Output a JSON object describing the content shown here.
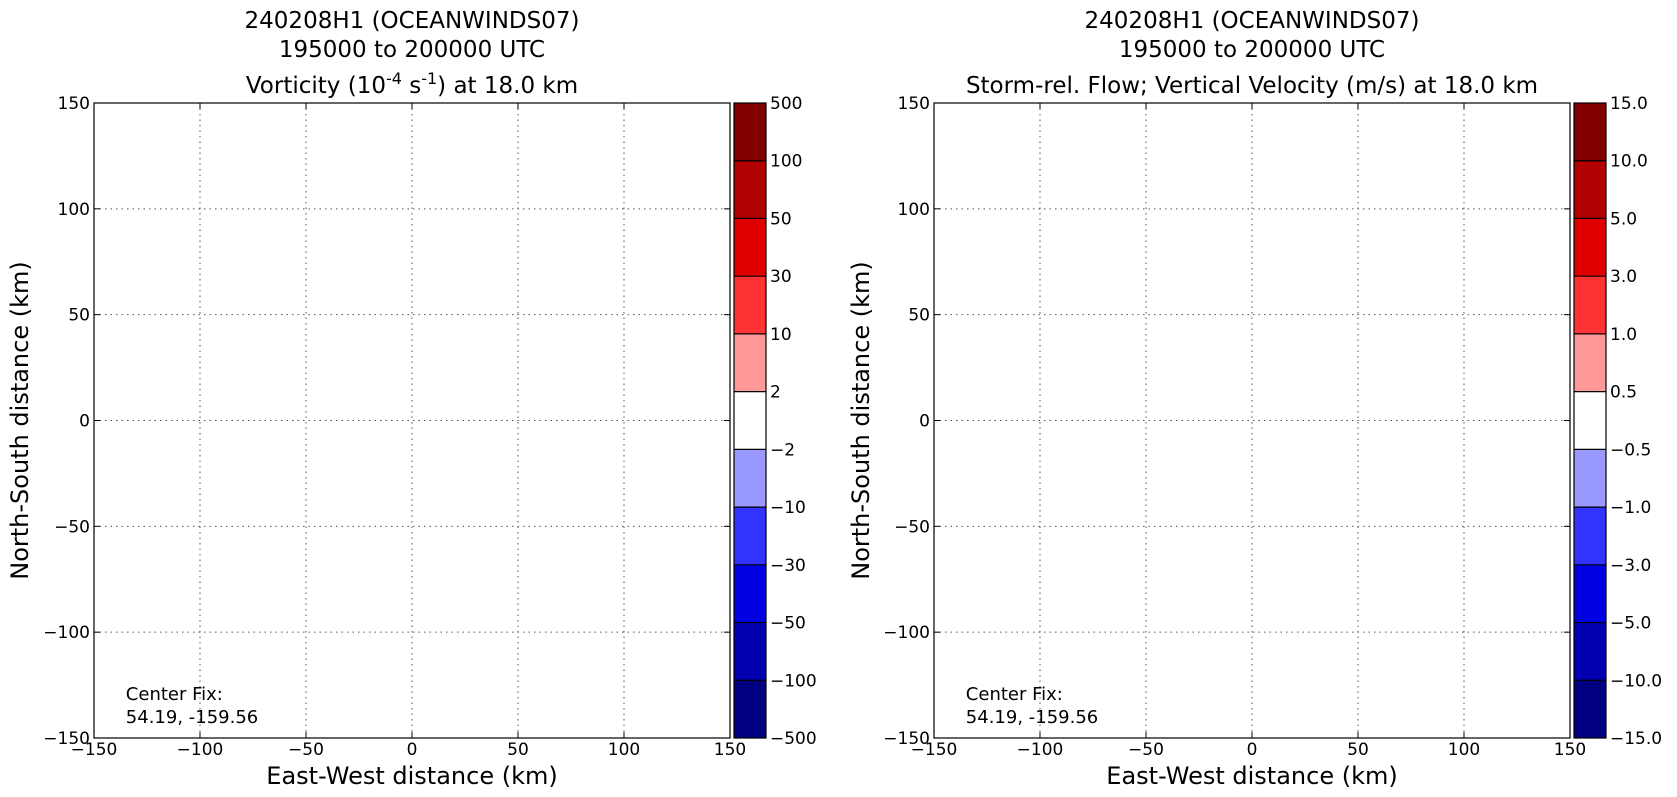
{
  "chart_data": [
    {
      "type": "contour",
      "title_lines": [
        "240208H1 (OCEANWINDS07)",
        "195000 to 200000 UTC"
      ],
      "title_line3": {
        "pre": "Vorticity (10",
        "sup1": "-4",
        "mid": " s",
        "sup2": "-1",
        "post": ") at 18.0 km"
      },
      "xlabel": "East-West distance (km)",
      "ylabel": "North-South distance (km)",
      "xlim": [
        -150,
        150
      ],
      "ylim": [
        -150,
        150
      ],
      "xticks": [
        -150,
        -100,
        -50,
        0,
        50,
        100,
        150
      ],
      "yticks": [
        -150,
        -100,
        -50,
        0,
        50,
        100,
        150
      ],
      "xtick_labels": [
        "−150",
        "−100",
        "−50",
        "0",
        "50",
        "100",
        "150"
      ],
      "ytick_labels": [
        "−150",
        "−100",
        "−50",
        "0",
        "50",
        "100",
        "150"
      ],
      "grid": true,
      "annotation_lines": [
        "Center Fix:",
        "54.19, -159.56"
      ],
      "colorbar": {
        "levels": [
          -500,
          -100,
          -50,
          -30,
          -10,
          -2,
          2,
          10,
          30,
          50,
          100,
          500
        ],
        "labels": [
          "−500",
          "−100",
          "−50",
          "−30",
          "−10",
          "−2",
          "2",
          "10",
          "30",
          "50",
          "100",
          "500"
        ],
        "colors": [
          "#000080",
          "#0000b0",
          "#0000e0",
          "#3333ff",
          "#9999ff",
          "#ffffff",
          "#ff9999",
          "#ff3333",
          "#e00000",
          "#b00000",
          "#800000"
        ]
      },
      "values": []
    },
    {
      "type": "contour",
      "title_lines": [
        "240208H1 (OCEANWINDS07)",
        "195000 to 200000 UTC"
      ],
      "title_line3_text": "Storm-rel. Flow; Vertical Velocity (m/s) at 18.0 km",
      "xlabel": "East-West distance (km)",
      "ylabel": "North-South distance (km)",
      "xlim": [
        -150,
        150
      ],
      "ylim": [
        -150,
        150
      ],
      "xticks": [
        -150,
        -100,
        -50,
        0,
        50,
        100,
        150
      ],
      "yticks": [
        -150,
        -100,
        -50,
        0,
        50,
        100,
        150
      ],
      "xtick_labels": [
        "−150",
        "−100",
        "−50",
        "0",
        "50",
        "100",
        "150"
      ],
      "ytick_labels": [
        "−150",
        "−100",
        "−50",
        "0",
        "50",
        "100",
        "150"
      ],
      "grid": true,
      "annotation_lines": [
        "Center Fix:",
        "54.19, -159.56"
      ],
      "colorbar": {
        "levels": [
          -15.0,
          -10.0,
          -5.0,
          -3.0,
          -1.0,
          -0.5,
          0.5,
          1.0,
          3.0,
          5.0,
          10.0,
          15.0
        ],
        "labels": [
          "−15.0",
          "−10.0",
          "−5.0",
          "−3.0",
          "−1.0",
          "−0.5",
          "0.5",
          "1.0",
          "3.0",
          "5.0",
          "10.0",
          "15.0"
        ],
        "colors": [
          "#000080",
          "#0000b0",
          "#0000e0",
          "#3333ff",
          "#9999ff",
          "#ffffff",
          "#ff9999",
          "#ff3333",
          "#e00000",
          "#b00000",
          "#800000"
        ]
      },
      "values": []
    }
  ]
}
